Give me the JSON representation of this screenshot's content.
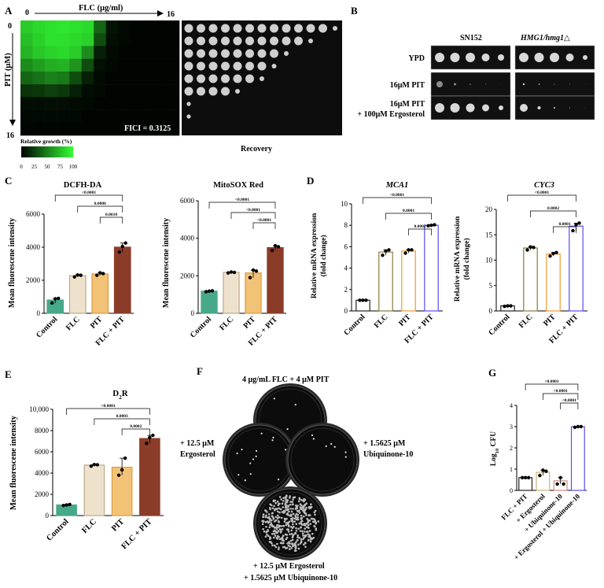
{
  "panels": {
    "A": {
      "label": "A",
      "xlabel": "FLC (μg/ml)",
      "x_start": "0",
      "x_end": "16",
      "ylabel": "PIT (μM)",
      "y_start": "0",
      "y_end": "16",
      "fici": "FICI = 0.3125",
      "recovery": "Recovery",
      "colorbar_title": "Relative growth (%)",
      "colorbar_ticks": [
        "0",
        "25",
        "50",
        "75",
        "100"
      ],
      "heatmap_rows": [
        [
          80,
          85,
          88,
          90,
          88,
          85,
          40,
          8,
          3,
          2,
          2,
          2,
          2
        ],
        [
          75,
          82,
          88,
          88,
          85,
          82,
          30,
          6,
          3,
          2,
          2,
          2,
          2
        ],
        [
          70,
          78,
          82,
          85,
          80,
          55,
          12,
          4,
          2,
          2,
          2,
          2,
          2
        ],
        [
          55,
          62,
          68,
          70,
          58,
          30,
          6,
          3,
          2,
          2,
          2,
          2,
          2
        ],
        [
          40,
          45,
          50,
          48,
          30,
          12,
          4,
          2,
          2,
          2,
          2,
          2,
          2
        ],
        [
          20,
          22,
          25,
          22,
          12,
          5,
          3,
          2,
          2,
          2,
          2,
          2,
          2
        ],
        [
          5,
          5,
          6,
          5,
          4,
          3,
          2,
          2,
          2,
          2,
          2,
          2,
          2
        ],
        [
          3,
          3,
          3,
          3,
          3,
          2,
          2,
          2,
          2,
          2,
          2,
          2,
          2
        ],
        [
          2,
          2,
          2,
          2,
          2,
          2,
          2,
          2,
          2,
          2,
          2,
          2,
          2
        ]
      ],
      "recovery_colonies_per_row": [
        13,
        11,
        9,
        8,
        7,
        5,
        1,
        1,
        0
      ]
    },
    "B": {
      "label": "B",
      "strain1": "SN152",
      "strain2": "HMG1/hmg1△",
      "rows": [
        "YPD",
        "16μM PIT",
        "16μM PIT\n+ 100μM Ergosterol"
      ],
      "row_lines": [
        [
          "YPD"
        ],
        [
          "16μM PIT"
        ],
        [
          "16μM PIT",
          "+ 100μM Ergosterol"
        ]
      ]
    },
    "C": {
      "label": "C",
      "categories": [
        "Control",
        "FLC",
        "PIT",
        "FLC + PIT"
      ],
      "ylabel": "Mean fluorescene intensity",
      "charts": [
        {
          "title": "DCFH-DA",
          "ylim": [
            0,
            6000
          ],
          "yticks": [
            "0",
            "2000",
            "4000",
            "6000"
          ],
          "values": [
            800,
            2280,
            2380,
            4000
          ],
          "points": [
            [
              620,
              880,
              900
            ],
            [
              2200,
              2320,
              2300
            ],
            [
              2300,
              2450,
              2400
            ],
            [
              3700,
              4050,
              4250
            ]
          ],
          "pvalues": [
            "<0.0001",
            "0.0006",
            "0.0010"
          ]
        },
        {
          "title": "MitoSOX Red",
          "ylim": [
            0,
            6000
          ],
          "yticks": [
            "0",
            "2000",
            "4000",
            "6000"
          ],
          "values": [
            1180,
            2180,
            2150,
            3500
          ],
          "points": [
            [
              1150,
              1180,
              1200
            ],
            [
              2150,
              2200,
              2180
            ],
            [
              1900,
              2300,
              2250
            ],
            [
              3350,
              3600,
              3550
            ]
          ],
          "pvalues": [
            "<0.0001",
            "<0.0001",
            "<0.0001"
          ]
        }
      ]
    },
    "D": {
      "label": "D",
      "categories": [
        "Control",
        "FLC",
        "PIT",
        "FLC + PIT"
      ],
      "ylabel": "Relative mRNA expression (fold change)",
      "ylabel_lines": [
        "Relative mRNA expression",
        "(fold change)"
      ],
      "charts": [
        {
          "title": "MCA1",
          "ylim": [
            0,
            10
          ],
          "yticks": [
            "0",
            "2",
            "4",
            "6",
            "8",
            "10"
          ],
          "values": [
            1.0,
            5.5,
            5.6,
            8.0
          ],
          "points": [
            [
              1.0,
              1.0,
              1.0
            ],
            [
              5.2,
              5.6,
              5.7
            ],
            [
              5.4,
              5.7,
              5.7
            ],
            [
              7.95,
              8.0,
              8.05
            ]
          ],
          "pvalues": [
            "<0.0001",
            "0.0001",
            "0.0002"
          ]
        },
        {
          "title": "CYC3",
          "ylim": [
            0,
            20
          ],
          "yticks": [
            "0",
            "5",
            "10",
            "15",
            "20"
          ],
          "values": [
            1.0,
            12.4,
            11.2,
            16.7
          ],
          "points": [
            [
              0.9,
              1.0,
              1.0
            ],
            [
              12.0,
              12.6,
              12.5
            ],
            [
              10.8,
              11.3,
              11.5
            ],
            [
              15.8,
              17.0,
              17.3
            ]
          ],
          "pvalues": [
            "<0.0001",
            "0.0002",
            "0.0001"
          ]
        }
      ]
    },
    "E": {
      "label": "E",
      "title_main": "D",
      "title_sub": "2",
      "title_end": "R",
      "categories": [
        "Control",
        "FLC",
        "PIT",
        "FLC + PIT"
      ],
      "ylabel": "Mean fluorescene intensity",
      "ylim": [
        0,
        10000
      ],
      "yticks": [
        "0",
        "2000",
        "4000",
        "6000",
        "8000",
        "10,000"
      ],
      "values": [
        1000,
        4750,
        4550,
        7250
      ],
      "points": [
        [
          950,
          1000,
          1050
        ],
        [
          4650,
          4800,
          4780
        ],
        [
          3800,
          4300,
          5400
        ],
        [
          6800,
          7350,
          7550
        ]
      ],
      "pvalues": [
        "<0.0001",
        "0.0003",
        "0.0002"
      ]
    },
    "F": {
      "label": "F",
      "top": "4 μg/mL FLC + 4 μM PIT",
      "left_line1": "+ 12.5 μM",
      "left_line2": "Ergosterol",
      "right_line1": "+ 1.5625 μM",
      "right_line2": "Ubiquinone-10",
      "bottom_line1": "+ 12.5 μM  Ergosterol",
      "bottom_line2": "+ 1.5625 μM Ubiquinone-10"
    },
    "G": {
      "label": "G",
      "ylabel_main": "Log",
      "ylabel_sub": "10",
      "ylabel_end": " CFU",
      "ylim": [
        0,
        4
      ],
      "yticks": [
        "0",
        "1",
        "2",
        "3",
        "4"
      ],
      "categories": [
        "FLC + PIT",
        "+ Ergosterol",
        "+ Ubiquinone-10",
        "+ Ergosterol + Ubiquinone-10"
      ],
      "values": [
        0.6,
        0.85,
        0.45,
        3.0
      ],
      "points": [
        [
          0.6,
          0.6,
          0.6
        ],
        [
          0.7,
          0.95,
          0.9
        ],
        [
          0.3,
          0.6,
          0.3
        ],
        [
          2.97,
          3.0,
          3.0
        ]
      ],
      "pvalues": [
        "<0.0001",
        "<0.0001",
        "<0.0001"
      ]
    }
  },
  "colors": {
    "control": "#47a88a",
    "flc": "#efe2cd",
    "pit": "#f2c277",
    "combo": "#8b3c28",
    "mca_control": "#222222",
    "mca_flc": "#8a7a3a",
    "mca_pit": "#f09a2a",
    "mca_combo": "#5a4cf0",
    "g_1": "#222222",
    "g_2": "#c7b37a",
    "g_3": "#c98a84",
    "g_4": "#5a4cf0"
  }
}
